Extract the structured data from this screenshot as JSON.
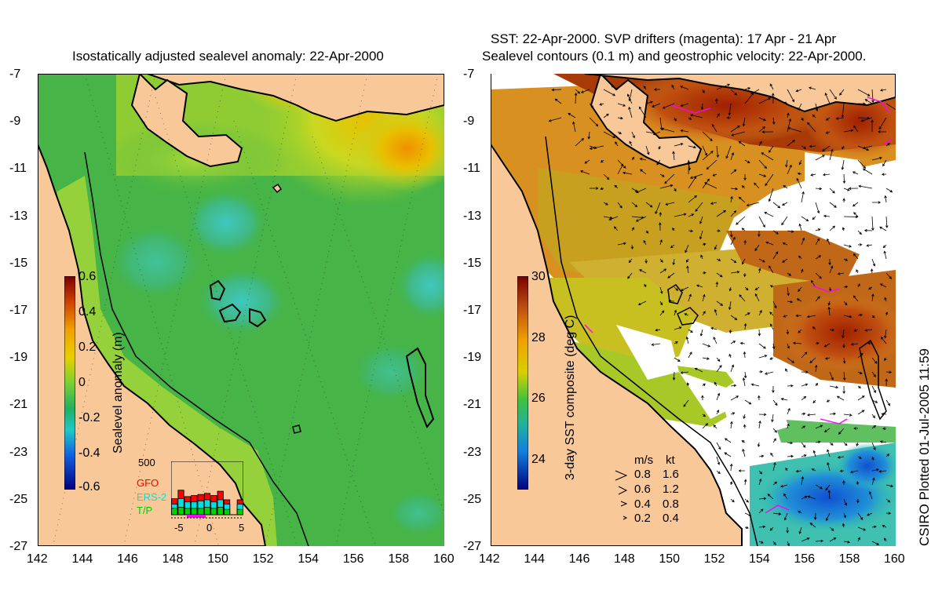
{
  "left_panel": {
    "title": "Isostatically adjusted sealevel anomaly: 22-Apr-2000",
    "colorbar": {
      "label": "Sealevel anomaly (m)",
      "ticks": [
        "0.6",
        "0.4",
        "0.2",
        "0",
        "-0.2",
        "-0.4",
        "-0.6"
      ],
      "min": -0.6,
      "max": 0.6
    },
    "inset": {
      "ymax_label": "500",
      "x_ticks": [
        "-5",
        "0",
        "5"
      ],
      "legend": [
        {
          "label": "GFO",
          "color": "#ff0000"
        },
        {
          "label": "ERS-2",
          "color": "#00e0e0"
        },
        {
          "label": "T/P",
          "color": "#00d000"
        }
      ],
      "bars_total": [
        0.3,
        0.46,
        0.34,
        0.36,
        0.38,
        0.4,
        0.36,
        0.44,
        0.28,
        0.0,
        0.28
      ],
      "bars_ers": [
        0.2,
        0.3,
        0.24,
        0.24,
        0.26,
        0.28,
        0.24,
        0.28,
        0.2,
        0.0,
        0.2
      ],
      "bars_tp": [
        0.12,
        0.14,
        0.12,
        0.12,
        0.12,
        0.14,
        0.12,
        0.14,
        0.1,
        0.0,
        0.1
      ]
    }
  },
  "right_panel": {
    "title_line1": "SST: 22-Apr-2000. SVP drifters (magenta): 17 Apr - 21 Apr",
    "title_line2": "Sealevel contours (0.1 m) and geostrophic velocity: 22-Apr-2000.",
    "colorbar": {
      "label": "3-day SST composite (deg C)",
      "ticks": [
        "30",
        "28",
        "26",
        "24"
      ],
      "min": 23,
      "max": 30
    },
    "velocity_legend": {
      "header_ms": "m/s",
      "header_kt": "kt",
      "rows": [
        {
          "ms": "0.8",
          "kt": "1.6"
        },
        {
          "ms": "0.6",
          "kt": "1.2"
        },
        {
          "ms": "0.4",
          "kt": "0.8"
        },
        {
          "ms": "0.2",
          "kt": "0.4"
        }
      ]
    }
  },
  "axes": {
    "lat_ticks": [
      "-7",
      "-9",
      "-11",
      "-13",
      "-15",
      "-17",
      "-19",
      "-21",
      "-23",
      "-25",
      "-27"
    ],
    "lon_ticks": [
      "142",
      "144",
      "146",
      "148",
      "150",
      "152",
      "154",
      "156",
      "158",
      "160"
    ]
  },
  "credit": "CSIRO Plotted 01-Jul-2005 11:59",
  "colors": {
    "land": "#f8c898",
    "coast": "#000000",
    "sla_base": "#44b444",
    "drifter": "#ff00ff"
  }
}
